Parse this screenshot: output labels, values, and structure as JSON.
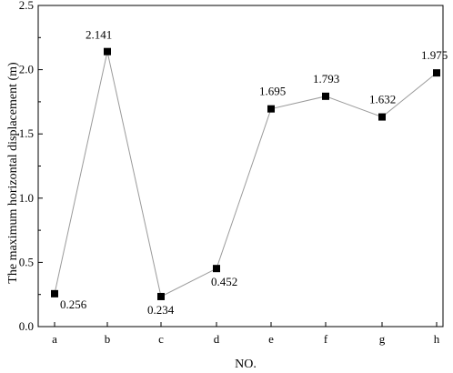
{
  "chart_data": {
    "type": "line",
    "categories": [
      "a",
      "b",
      "c",
      "d",
      "e",
      "f",
      "g",
      "h"
    ],
    "series": [
      {
        "values": [
          0.256,
          2.141,
          0.234,
          0.452,
          1.695,
          1.793,
          1.632,
          1.975
        ]
      }
    ],
    "data_labels": [
      "0.256",
      "2.141",
      "0.234",
      "0.452",
      "1.695",
      "1.793",
      "1.632",
      "1.975"
    ],
    "xlabel": "NO.",
    "ylabel": "The maximum horizontal displacement (m)",
    "ylim": [
      0,
      2.5
    ],
    "yticks": [
      "0.0",
      "0.5",
      "1.0",
      "1.5",
      "2.0",
      "2.5"
    ],
    "marker": "square",
    "grid": false,
    "colors": {
      "line": "#9a9a9a",
      "marker": "#000000",
      "axis": "#000000"
    }
  }
}
